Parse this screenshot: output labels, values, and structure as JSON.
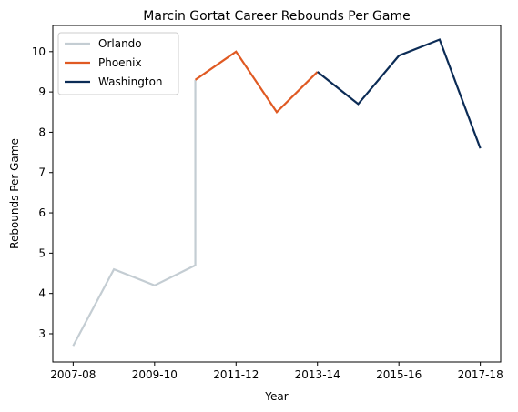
{
  "chart_data": {
    "type": "line",
    "title": "Marcin Gortat Career Rebounds Per Game",
    "xlabel": "Year",
    "ylabel": "Rebounds Per Game",
    "x_tick_labels": [
      "2007-08",
      "2009-10",
      "2011-12",
      "2013-14",
      "2015-16",
      "2017-18"
    ],
    "x_tick_positions": [
      0,
      2,
      4,
      6,
      8,
      10
    ],
    "yticks": [
      3,
      4,
      5,
      6,
      7,
      8,
      9,
      10
    ],
    "xlim": [
      -0.5,
      10.5
    ],
    "ylim": [
      2.3,
      10.65
    ],
    "grid": false,
    "legend_position": "top-left",
    "series": [
      {
        "name": "Orlando",
        "color": "#c4cdd3",
        "points": [
          [
            0,
            2.7
          ],
          [
            1,
            4.6
          ],
          [
            2,
            4.2
          ],
          [
            3,
            4.7
          ],
          [
            3,
            9.3
          ]
        ]
      },
      {
        "name": "Phoenix",
        "color": "#e05a23",
        "points": [
          [
            3,
            9.3
          ],
          [
            4,
            10.0
          ],
          [
            5,
            8.5
          ],
          [
            6,
            9.5
          ]
        ]
      },
      {
        "name": "Washington",
        "color": "#0c2c56",
        "points": [
          [
            6,
            9.5
          ],
          [
            7,
            8.7
          ],
          [
            8,
            9.9
          ],
          [
            9,
            10.3
          ],
          [
            10,
            7.6
          ]
        ]
      }
    ]
  }
}
